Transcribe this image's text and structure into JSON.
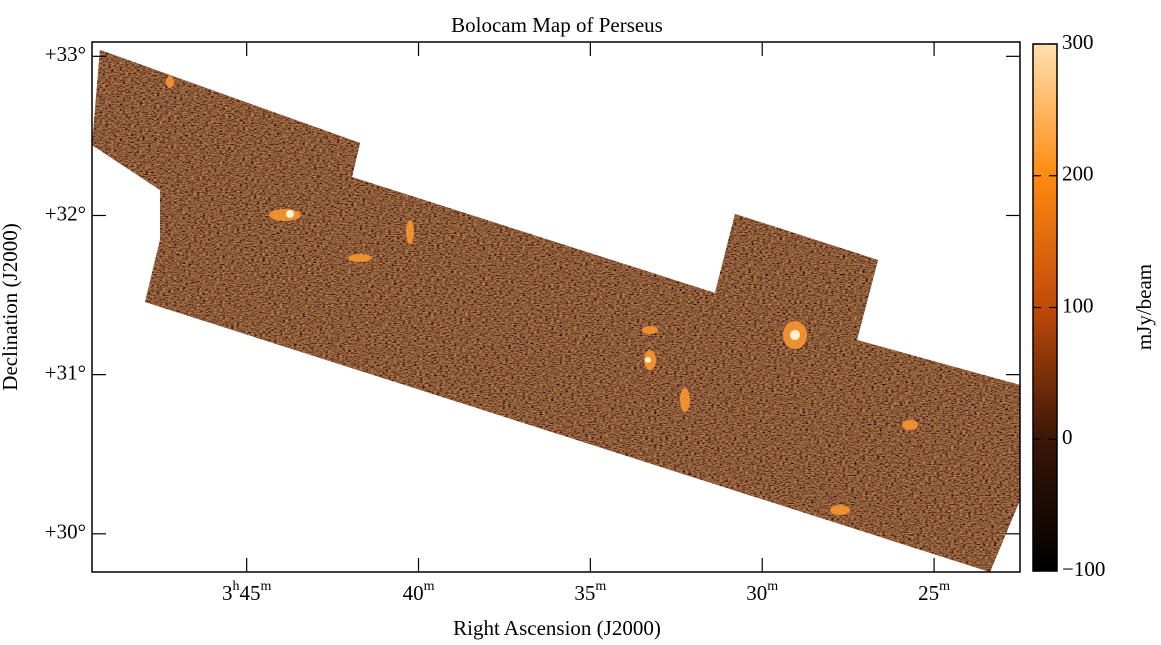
{
  "chart_data": {
    "type": "map",
    "title": "Bolocam Map of Perseus",
    "x_label": "Right Ascension (J2000)",
    "y_label": "Declination (J2000)",
    "xlim": [
      229.5,
      202.5
    ],
    "xticks": [
      {
        "value": 225,
        "label": "3h45m"
      },
      {
        "value": 220,
        "label": "40m"
      },
      {
        "value": 215,
        "label": "35m"
      },
      {
        "value": 210,
        "label": "30m"
      },
      {
        "value": 205,
        "label": "25m"
      }
    ],
    "ylim": [
      29.76,
      33.09
    ],
    "yticks": [
      {
        "value": 30,
        "label": "+30°"
      },
      {
        "value": 31,
        "label": "+31°"
      },
      {
        "value": 32,
        "label": "+32°"
      },
      {
        "value": 33,
        "label": "+33°"
      }
    ],
    "colorbar": {
      "label": "mJy/beam",
      "lim": [
        -100,
        300
      ],
      "ticks": [
        {
          "value": -100,
          "label": "−100"
        },
        0,
        100,
        200,
        300
      ]
    }
  }
}
